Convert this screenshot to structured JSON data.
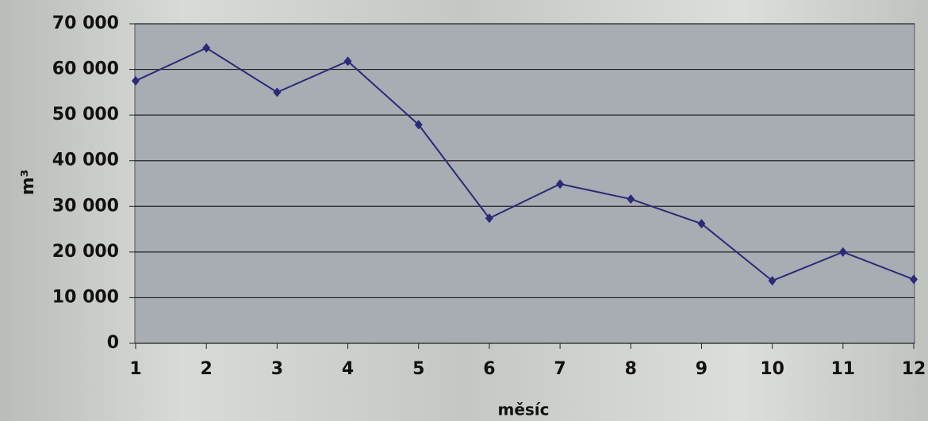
{
  "chart_data": {
    "type": "line",
    "y_label": "m³",
    "x_label": "měsíc",
    "x": [
      1,
      2,
      3,
      4,
      5,
      6,
      7,
      8,
      9,
      10,
      11,
      12
    ],
    "xlim": [
      1,
      12
    ],
    "xticks": [
      1,
      2,
      3,
      4,
      5,
      6,
      7,
      8,
      9,
      10,
      11,
      12
    ],
    "series": [
      {
        "color": "#2b2a78",
        "values": [
          57500,
          64700,
          55000,
          61800,
          47900,
          27400,
          34900,
          31600,
          26200,
          13700,
          20000,
          14000
        ]
      }
    ],
    "ylim": [
      0,
      70000
    ],
    "yticks": [
      0,
      {
        "value": 10000,
        "label": "10 000"
      },
      {
        "value": 20000,
        "label": "20 000"
      },
      {
        "value": 30000,
        "label": "30 000"
      },
      {
        "value": 40000,
        "label": "40 000"
      },
      {
        "value": 50000,
        "label": "50 000"
      },
      {
        "value": 60000,
        "label": "60 000"
      },
      {
        "value": 70000,
        "label": "70 000"
      }
    ],
    "grid": true
  }
}
